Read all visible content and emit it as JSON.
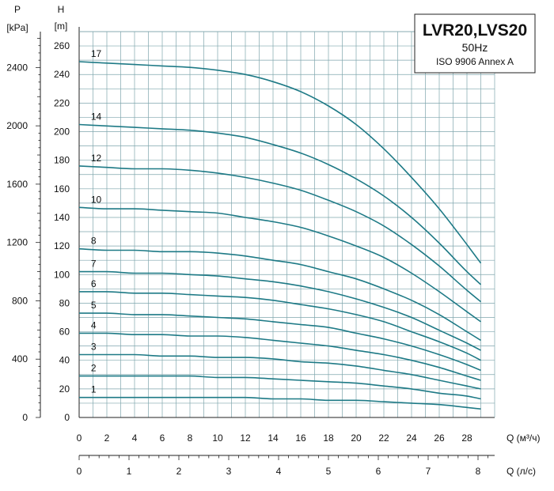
{
  "chart_data": {
    "type": "line",
    "title": "LVR20,LVS20",
    "subtitle": "50Hz",
    "standard": "ISO 9906 Annex A",
    "ylabel": "H",
    "yunit": "[m]",
    "ylim": [
      0,
      270
    ],
    "yticks": [
      0,
      20,
      40,
      60,
      80,
      100,
      120,
      140,
      160,
      180,
      200,
      220,
      240,
      260
    ],
    "y2label": "P",
    "y2unit": "[kPa]",
    "y2ticks": [
      0,
      400,
      800,
      1200,
      1600,
      2000,
      2400
    ],
    "xlabel": "Q (м³/ч)",
    "xlim": [
      0,
      30
    ],
    "xticks": [
      0,
      2,
      4,
      6,
      8,
      10,
      12,
      14,
      16,
      18,
      20,
      22,
      24,
      26,
      28
    ],
    "x2label": "Q (л/с)",
    "x2ticks": [
      0,
      1,
      2,
      3,
      4,
      5,
      6,
      7,
      8
    ],
    "grid": true,
    "x": [
      0,
      2,
      4,
      6,
      8,
      10,
      12,
      14,
      16,
      18,
      20,
      22,
      24,
      26,
      28,
      29
    ],
    "series": [
      {
        "name": "17",
        "values": [
          249,
          248,
          247,
          246,
          245,
          243,
          240,
          235,
          228,
          218,
          205,
          188,
          168,
          146,
          121,
          108
        ]
      },
      {
        "name": "14",
        "values": [
          205,
          204,
          203,
          202,
          201,
          199,
          196,
          191,
          185,
          177,
          167,
          155,
          140,
          122,
          102,
          93
        ]
      },
      {
        "name": "12",
        "values": [
          176,
          175,
          174,
          174,
          173,
          171,
          168,
          164,
          159,
          152,
          144,
          134,
          121,
          106,
          89,
          81
        ]
      },
      {
        "name": "10",
        "values": [
          147,
          146,
          146,
          145,
          144,
          143,
          140,
          137,
          133,
          127,
          120,
          112,
          101,
          88,
          74,
          67
        ]
      },
      {
        "name": "8",
        "values": [
          118,
          117,
          117,
          116,
          116,
          115,
          113,
          110,
          107,
          102,
          97,
          90,
          82,
          72,
          60,
          54
        ]
      },
      {
        "name": "7",
        "values": [
          102,
          102,
          101,
          101,
          100,
          99,
          97,
          95,
          92,
          88,
          83,
          77,
          70,
          61,
          52,
          47
        ]
      },
      {
        "name": "6",
        "values": [
          88,
          88,
          87,
          87,
          86,
          85,
          84,
          82,
          79,
          76,
          72,
          67,
          60,
          53,
          45,
          40
        ]
      },
      {
        "name": "5",
        "values": [
          73,
          73,
          72,
          72,
          71,
          70,
          69,
          67,
          65,
          63,
          59,
          55,
          50,
          44,
          37,
          33
        ]
      },
      {
        "name": "4",
        "values": [
          59,
          59,
          58,
          58,
          57,
          57,
          56,
          54,
          52,
          50,
          47,
          44,
          40,
          35,
          29,
          26
        ]
      },
      {
        "name": "3",
        "values": [
          44,
          44,
          44,
          43,
          43,
          42,
          42,
          41,
          39,
          38,
          36,
          33,
          30,
          26,
          22,
          20
        ]
      },
      {
        "name": "2",
        "values": [
          29,
          29,
          29,
          29,
          29,
          28,
          28,
          27,
          26,
          25,
          24,
          22,
          20,
          17,
          15,
          13
        ]
      },
      {
        "name": "1",
        "values": [
          14,
          14,
          14,
          14,
          14,
          14,
          14,
          13,
          13,
          12,
          12,
          11,
          10,
          9,
          7,
          6
        ]
      }
    ],
    "colors": {
      "curve": "#1e7a86",
      "grid": "#7fa6ad",
      "frame": "#222222"
    }
  }
}
